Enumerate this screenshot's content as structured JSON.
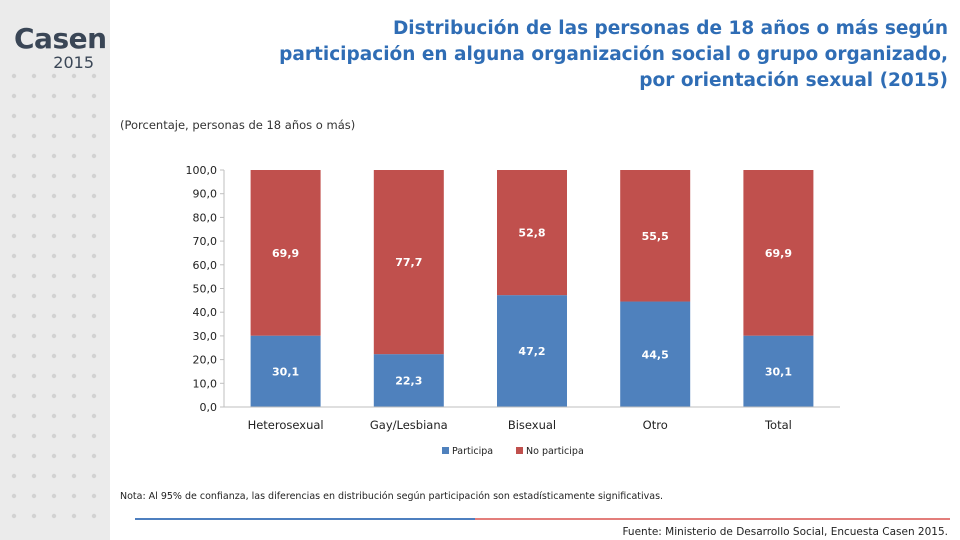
{
  "brand": {
    "name": "Casen",
    "year": "2015"
  },
  "title_lines": [
    "Distribución de las personas de 18 años o más según",
    "participación en alguna organización social o grupo organizado,",
    "por orientación sexual (2015)"
  ],
  "subtitle": "(Porcentaje, personas de 18 años o más)",
  "note": "Nota: Al 95% de confianza, las diferencias en distribución según participación son estadísticamente significativas.",
  "source": "Fuente: Ministerio de Desarrollo Social, Encuesta Casen 2015.",
  "colors": {
    "title": "#2f6db5",
    "participa": "#4f81bd",
    "no_participa": "#c0504d"
  },
  "chart_data": {
    "type": "bar",
    "stacked": true,
    "categories": [
      "Heterosexual",
      "Gay/Lesbiana",
      "Bisexual",
      "Otro",
      "Total"
    ],
    "series": [
      {
        "name": "Participa",
        "values": [
          30.1,
          22.3,
          47.2,
          44.5,
          30.1
        ],
        "labels": [
          "30,1",
          "22,3",
          "47,2",
          "44,5",
          "30,1"
        ],
        "color": "#4f81bd"
      },
      {
        "name": "No participa",
        "values": [
          69.9,
          77.7,
          52.8,
          55.5,
          69.9
        ],
        "labels": [
          "69,9",
          "77,7",
          "52,8",
          "55,5",
          "69,9"
        ],
        "color": "#c0504d"
      }
    ],
    "ylim": [
      0,
      100
    ],
    "yticks": [
      "0,0",
      "10,0",
      "20,0",
      "30,0",
      "40,0",
      "50,0",
      "60,0",
      "70,0",
      "80,0",
      "90,0",
      "100,0"
    ],
    "legend_position": "bottom",
    "grid": false
  }
}
